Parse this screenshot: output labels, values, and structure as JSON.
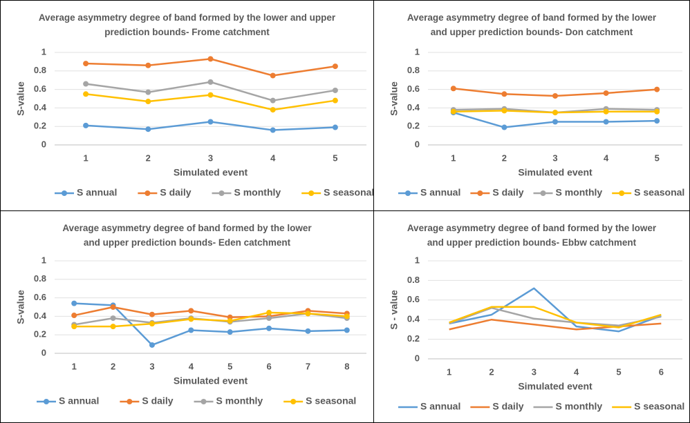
{
  "chart_data": [
    {
      "type": "line",
      "title": "Average asymmetry degree of band formed by the lower and upper prediction bounds- Frome catchment",
      "x_label": "Simulated event",
      "y_label": "S-value",
      "markers": true,
      "grid": true,
      "legend": "bottom",
      "categories": [
        "1",
        "2",
        "3",
        "4",
        "5"
      ],
      "ylim": [
        0,
        1
      ],
      "yticks": [
        0,
        0.2,
        0.4,
        0.6,
        0.8,
        1
      ],
      "series": [
        {
          "name": "S annual",
          "color": "#5b9bd5",
          "values": [
            0.21,
            0.17,
            0.25,
            0.16,
            0.19
          ]
        },
        {
          "name": "S daily",
          "color": "#ed7d31",
          "values": [
            0.88,
            0.86,
            0.93,
            0.75,
            0.85
          ]
        },
        {
          "name": "S monthly",
          "color": "#a5a5a5",
          "values": [
            0.66,
            0.57,
            0.68,
            0.48,
            0.59
          ]
        },
        {
          "name": "S seasonal",
          "color": "#ffc000",
          "values": [
            0.55,
            0.47,
            0.54,
            0.38,
            0.48
          ]
        }
      ]
    },
    {
      "type": "line",
      "title": "Average asymmetry degree of band formed by the lower and upper prediction bounds- Don catchment",
      "x_label": "Simulated event",
      "y_label": "S-value",
      "markers": true,
      "grid": true,
      "legend": "bottom",
      "categories": [
        "1",
        "2",
        "3",
        "4",
        "5"
      ],
      "ylim": [
        0,
        1
      ],
      "yticks": [
        0,
        0.2,
        0.4,
        0.6,
        0.8,
        1
      ],
      "series": [
        {
          "name": "S annual",
          "color": "#5b9bd5",
          "values": [
            0.35,
            0.19,
            0.25,
            0.25,
            0.26
          ]
        },
        {
          "name": "S daily",
          "color": "#ed7d31",
          "values": [
            0.61,
            0.55,
            0.53,
            0.56,
            0.6
          ]
        },
        {
          "name": "S monthly",
          "color": "#a5a5a5",
          "values": [
            0.38,
            0.39,
            0.35,
            0.39,
            0.38
          ]
        },
        {
          "name": "S seasonal",
          "color": "#ffc000",
          "values": [
            0.36,
            0.37,
            0.35,
            0.36,
            0.36
          ]
        }
      ]
    },
    {
      "type": "line",
      "title": "Average asymmetry degree of band formed by the lower and upper prediction bounds- Eden catchment",
      "x_label": "Simulated event",
      "y_label": "S-value",
      "markers": true,
      "grid": true,
      "legend": "bottom",
      "categories": [
        "1",
        "2",
        "3",
        "4",
        "5",
        "6",
        "7",
        "8"
      ],
      "ylim": [
        0,
        1
      ],
      "yticks": [
        0,
        0.2,
        0.4,
        0.6,
        0.8,
        1
      ],
      "series": [
        {
          "name": "S annual",
          "color": "#5b9bd5",
          "values": [
            0.54,
            0.52,
            0.09,
            0.25,
            0.23,
            0.27,
            0.24,
            0.25
          ]
        },
        {
          "name": "S daily",
          "color": "#ed7d31",
          "values": [
            0.41,
            0.5,
            0.42,
            0.46,
            0.39,
            0.4,
            0.46,
            0.43
          ]
        },
        {
          "name": "S monthly",
          "color": "#a5a5a5",
          "values": [
            0.31,
            0.38,
            0.33,
            0.38,
            0.34,
            0.38,
            0.43,
            0.38
          ]
        },
        {
          "name": "S seasonal",
          "color": "#ffc000",
          "values": [
            0.29,
            0.29,
            0.32,
            0.37,
            0.35,
            0.44,
            0.43,
            0.4
          ]
        }
      ]
    },
    {
      "type": "line",
      "title": "Average asymmetry degree of band formed by the lower and upper prediction bounds- Ebbw catchment",
      "x_label": "Simulated event",
      "y_label": "S - value",
      "markers": false,
      "grid": true,
      "legend": "bottom",
      "categories": [
        "1",
        "2",
        "3",
        "4",
        "5",
        "6"
      ],
      "ylim": [
        0,
        1
      ],
      "yticks": [
        0,
        0.2,
        0.4,
        0.6,
        0.8,
        1
      ],
      "series": [
        {
          "name": "S annual",
          "color": "#5b9bd5",
          "values": [
            0.36,
            0.45,
            0.72,
            0.33,
            0.28,
            0.44
          ]
        },
        {
          "name": "S daily",
          "color": "#ed7d31",
          "values": [
            0.3,
            0.4,
            0.35,
            0.3,
            0.33,
            0.36
          ]
        },
        {
          "name": "S monthly",
          "color": "#a5a5a5",
          "values": [
            0.36,
            0.52,
            0.41,
            0.37,
            0.34,
            0.43
          ]
        },
        {
          "name": "S seasonal",
          "color": "#ffc000",
          "values": [
            0.37,
            0.53,
            0.53,
            0.37,
            0.32,
            0.45
          ]
        }
      ]
    }
  ]
}
